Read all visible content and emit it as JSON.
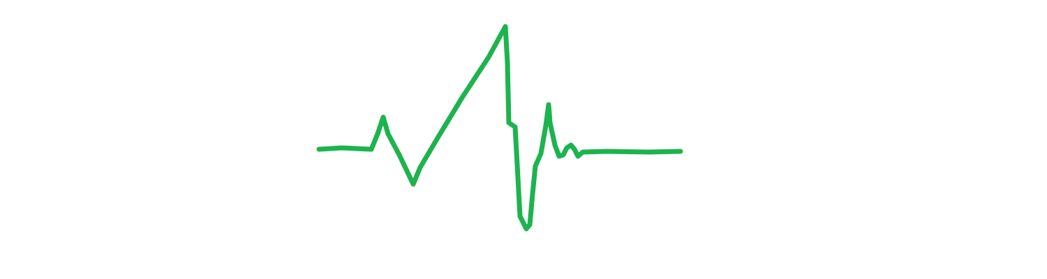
{
  "drawing": {
    "subject": "heartbeat-line-icon",
    "stroke_color": "#1DB34F",
    "background_color": "#FFFFFF"
  }
}
